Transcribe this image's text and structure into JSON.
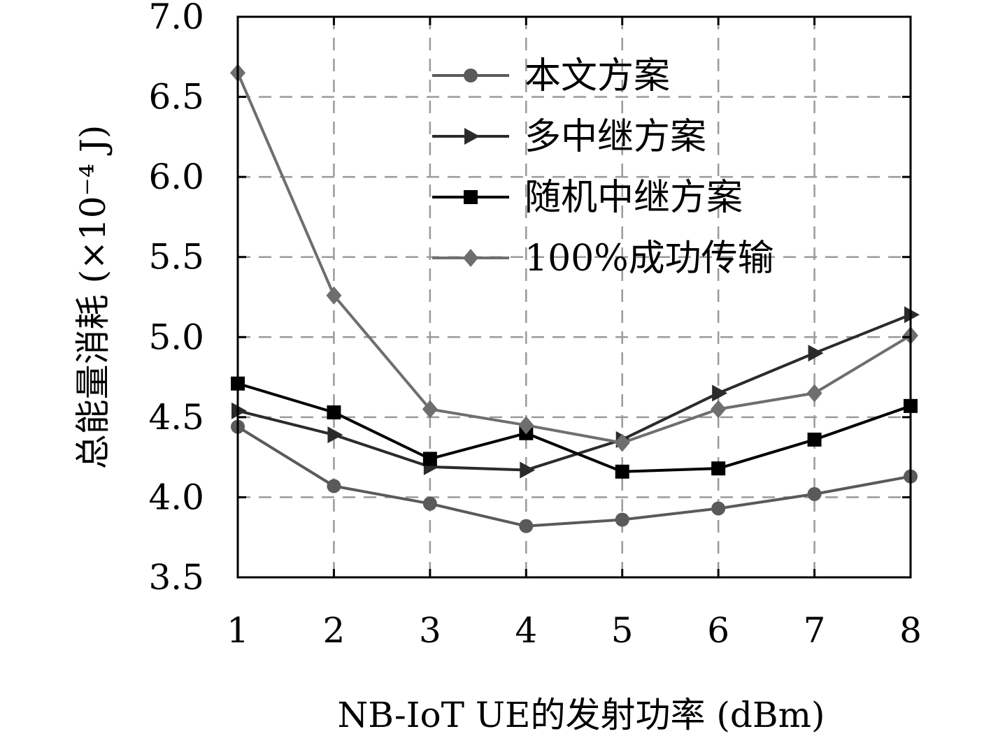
{
  "chart_data": {
    "type": "line",
    "x": [
      1,
      2,
      3,
      4,
      5,
      6,
      7,
      8
    ],
    "xlim": [
      1,
      8
    ],
    "ylim": [
      3.5,
      7.0
    ],
    "xticks": [
      "1",
      "2",
      "3",
      "4",
      "5",
      "6",
      "7",
      "8"
    ],
    "yticks": [
      "3.5",
      "4.0",
      "4.5",
      "5.0",
      "5.5",
      "6.0",
      "6.5",
      "7.0"
    ],
    "xlabel": "NB-IoT UE的发射功率 (dBm)",
    "ylabel": "总能量消耗 (×10⁻⁴ J)",
    "grid": true,
    "legend_position": "top-right",
    "series": [
      {
        "name": "本文方案",
        "marker": "circle",
        "color": "#5a5a5a",
        "values": [
          4.44,
          4.07,
          3.96,
          3.82,
          3.86,
          3.93,
          4.02,
          4.13
        ]
      },
      {
        "name": "多中继方案",
        "marker": "triangle-right",
        "color": "#2b2b2b",
        "values": [
          4.54,
          4.39,
          4.19,
          4.17,
          4.36,
          4.65,
          4.9,
          5.14
        ]
      },
      {
        "name": "随机中继方案",
        "marker": "square",
        "color": "#000000",
        "values": [
          4.71,
          4.53,
          4.24,
          4.4,
          4.16,
          4.18,
          4.36,
          4.57
        ]
      },
      {
        "name": "100%成功传输",
        "marker": "diamond",
        "color": "#6e6e6e",
        "values": [
          6.65,
          5.26,
          4.55,
          4.45,
          4.34,
          4.55,
          4.65,
          5.01
        ]
      }
    ]
  }
}
